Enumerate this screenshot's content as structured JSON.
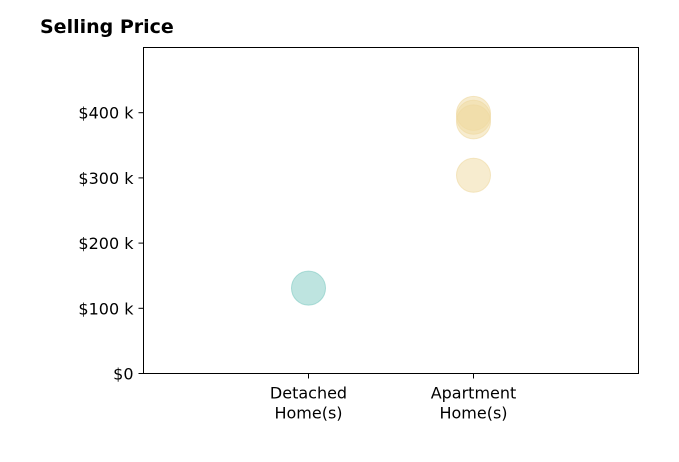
{
  "chart_data": {
    "type": "scatter",
    "title": "Selling Price",
    "xlabel": "",
    "ylabel": "",
    "categories": [
      "Detached\nHome(s)",
      "Apartment\nHome(s)"
    ],
    "y_ticks": [
      "$0",
      "$100 k",
      "$200 k",
      "$300 k",
      "$400 k"
    ],
    "y_tick_values": [
      0,
      100000,
      200000,
      300000,
      400000
    ],
    "ylim": [
      0,
      500000
    ],
    "xlim": [
      -1,
      2
    ],
    "grid": false,
    "series": [
      {
        "category": "Detached\nHome(s)",
        "color": "#7ecac2",
        "points": [
          {
            "x": 0,
            "y": 131000
          }
        ]
      },
      {
        "category": "Apartment\nHome(s)",
        "color": "#efd9a0",
        "points": [
          {
            "x": 1,
            "y": 399000
          },
          {
            "x": 1,
            "y": 393000
          },
          {
            "x": 1,
            "y": 386000
          },
          {
            "x": 1,
            "y": 304000
          }
        ]
      }
    ]
  }
}
